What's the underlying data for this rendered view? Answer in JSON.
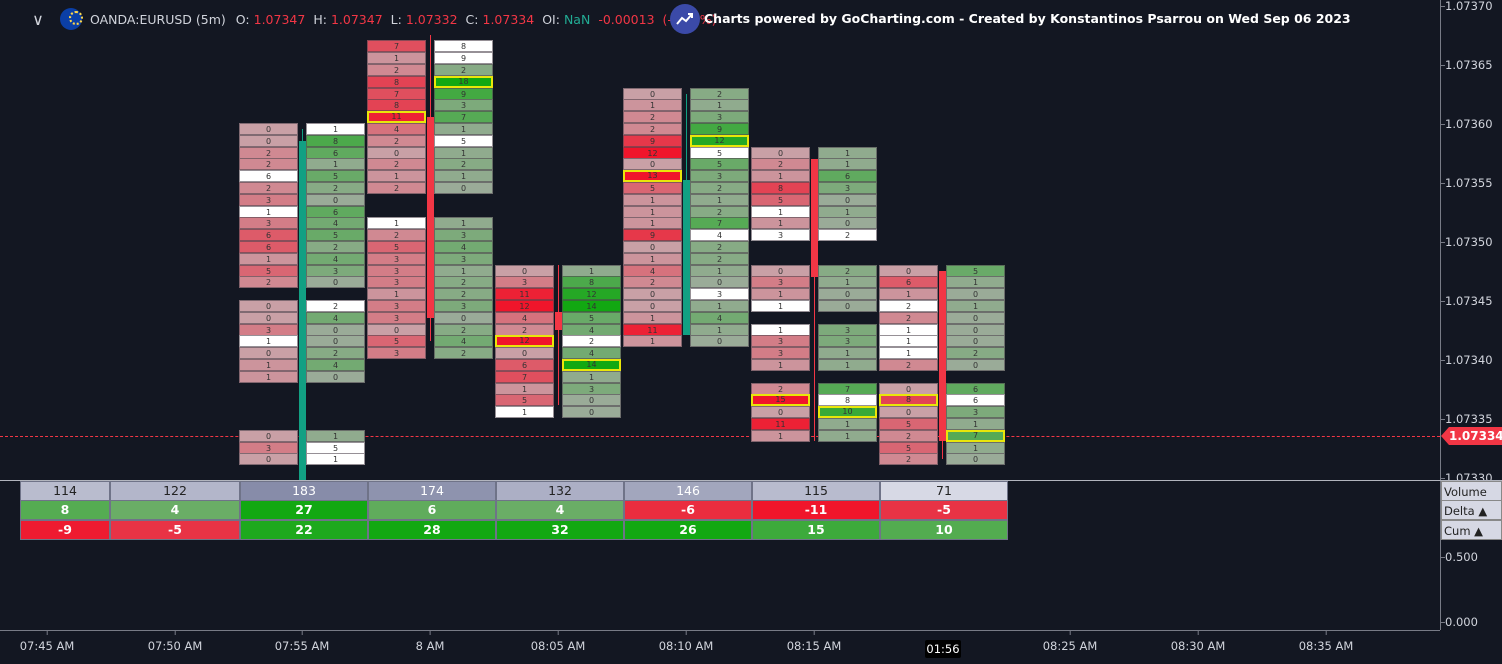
{
  "header": {
    "symbol": "OANDA:EURUSD (5m)",
    "o_label": "O:",
    "o": "1.07347",
    "h_label": "H:",
    "h": "1.07347",
    "l_label": "L:",
    "l": "1.07332",
    "c_label": "C:",
    "c": "1.07334",
    "oi_label": "OI:",
    "oi": "NaN",
    "change": "-0.00013",
    "change_pct": "(-0.01%)",
    "credit": "Charts powered by GoCharting.com - Created by Konstantinos Psarrou on Wed Sep 06 2023",
    "icons": [
      "chevron-down-icon",
      "eur-flag-icon",
      "gocharting-logo-icon"
    ]
  },
  "colors": {
    "bg": "#131722",
    "up": "#12a083",
    "down": "#f23645",
    "poc_border": "#e9e60a",
    "last_price": "#f23645"
  },
  "chart_data": {
    "type": "footprint",
    "price_step": 1e-05,
    "y_ticks": [
      "1.07370",
      "1.07365",
      "1.07360",
      "1.07355",
      "1.07350",
      "1.07345",
      "1.07340",
      "1.07335",
      "1.07330"
    ],
    "y_ticks_lower": [
      "0.500",
      "0.000"
    ],
    "x_ticks": [
      "07:45 AM",
      "07:50 AM",
      "07:55 AM",
      "8 AM",
      "08:05 AM",
      "08:10 AM",
      "08:15 AM",
      "08:25 AM",
      "08:30 AM",
      "08:35 AM"
    ],
    "last_price": "1.07334",
    "countdown": "01:56",
    "cell_legend": "w = white cell, h = point of control (highlighted)",
    "columns": [
      {
        "time": "07:55 AM",
        "candle": {
          "open": 1.0733,
          "high": 1.0736,
          "low": 1.07329,
          "close": 1.07359
        },
        "groups": [
          {
            "top": 1.0736,
            "bid": [
              "0",
              "0",
              "2",
              "2",
              "6w",
              "2",
              "3",
              "1w",
              "3",
              "6",
              "6",
              "1",
              "5",
              "2"
            ],
            "ask": [
              "1w",
              "8",
              "6",
              "1",
              "5",
              "2",
              "0",
              "6",
              "4",
              "5",
              "2",
              "4",
              "3",
              "0"
            ]
          },
          {
            "top": 1.07345,
            "bid": [
              "0",
              "0",
              "3",
              "1w",
              "0",
              "1",
              "1"
            ],
            "ask": [
              "2w",
              "4",
              "0",
              "0",
              "2",
              "4",
              "0"
            ]
          },
          {
            "top": 1.07334,
            "bid": [
              "0",
              "3",
              "0"
            ],
            "ask": [
              "1",
              "5w",
              "1w"
            ]
          }
        ]
      },
      {
        "time": "8 AM",
        "candle": {
          "open": 1.07361,
          "high": 1.07368,
          "low": 1.07342,
          "close": 1.07344
        },
        "groups": [
          {
            "top": 1.07367,
            "bid": [
              "7",
              "1",
              "2",
              "8",
              "7",
              "8",
              "11h",
              "4",
              "2",
              "0",
              "2",
              "1",
              "2"
            ],
            "ask": [
              "8w",
              "9w",
              "2",
              "18h",
              "9",
              "3",
              "7",
              "1",
              "5w",
              "1",
              "2",
              "1",
              "0"
            ]
          },
          {
            "top": 1.07352,
            "bid": [
              "1w",
              "2",
              "5",
              "3",
              "3",
              "3",
              "1",
              "3",
              "3",
              "0",
              "5",
              "3"
            ],
            "ask": [
              "1",
              "3",
              "4",
              "3",
              "1",
              "2",
              "2",
              "3",
              "0",
              "2",
              "4",
              "2"
            ]
          }
        ]
      },
      {
        "time": "08:05 AM",
        "candle": {
          "open": 1.073445,
          "high": 1.073485,
          "low": 1.073366,
          "close": 1.07343
        },
        "groups": [
          {
            "top": 1.07348,
            "bid": [
              "0",
              "3",
              "11",
              "12",
              "4",
              "2",
              "12h",
              "0",
              "6",
              "7",
              "1",
              "5",
              "1w"
            ],
            "ask": [
              "1",
              "8",
              "12",
              "14",
              "5",
              "4",
              "2w",
              "4",
              "14h",
              "1",
              "3",
              "0",
              "0"
            ]
          }
        ]
      },
      {
        "time": "08:10 AM",
        "candle": {
          "open": 1.073425,
          "high": 1.07363,
          "low": 1.073425,
          "close": 1.073557
        },
        "groups": [
          {
            "top": 1.07363,
            "bid": [
              "0",
              "1",
              "2",
              "2",
              "9",
              "12",
              "0",
              "13h",
              "5",
              "1",
              "1",
              "1",
              "9",
              "0",
              "1",
              "4",
              "2",
              "0",
              "0",
              "1",
              "11",
              "1"
            ],
            "ask": [
              "2",
              "1",
              "3",
              "9",
              "12h",
              "5w",
              "5",
              "3",
              "2",
              "1",
              "2",
              "7",
              "4w",
              "2",
              "2",
              "1",
              "0",
              "3w",
              "1",
              "4",
              "1",
              "0"
            ]
          }
        ]
      },
      {
        "time": "08:15 AM",
        "candle": {
          "open": 1.073575,
          "high": 1.073575,
          "low": 1.073336,
          "close": 1.073475
        },
        "groups": [
          {
            "top": 1.07358,
            "bid": [
              "0",
              "2",
              "1",
              "8",
              "5",
              "1w",
              "1",
              "3w"
            ],
            "ask": [
              "1",
              "1",
              "6",
              "3",
              "0",
              "1",
              "0",
              "2w"
            ]
          },
          {
            "top": 1.07348,
            "bid": [
              "0",
              "3",
              "1",
              "1w"
            ],
            "ask": [
              "2",
              "1",
              "0",
              "0"
            ]
          },
          {
            "top": 1.07343,
            "bid": [
              "1w",
              "3",
              "3",
              "1"
            ],
            "ask": [
              "3",
              "3",
              "1",
              "1"
            ]
          },
          {
            "top": 1.07338,
            "bid": [
              "2",
              "15h",
              "0",
              "11",
              "1"
            ],
            "ask": [
              "7",
              "8w",
              "10h",
              "1",
              "1"
            ]
          }
        ]
      },
      {
        "time": "08:20 AM",
        "candle": {
          "open": 1.07348,
          "high": 1.07348,
          "low": 1.07332,
          "close": 1.073336
        },
        "groups": [
          {
            "top": 1.07348,
            "bid": [
              "0",
              "6",
              "1",
              "2w",
              "2",
              "1w",
              "1w",
              "1w",
              "2"
            ],
            "ask": [
              "5",
              "1",
              "0",
              "1",
              "0",
              "0",
              "0",
              "2",
              "0"
            ]
          },
          {
            "top": 1.07338,
            "bid": [
              "0",
              "8h",
              "0",
              "5",
              "2",
              "5",
              "2"
            ],
            "ask": [
              "6",
              "6w",
              "3",
              "1",
              "7h",
              "1",
              "0"
            ]
          }
        ]
      }
    ],
    "summary": {
      "labels": [
        "Volume",
        "Delta ▲",
        "Cum ▲"
      ],
      "volume": [
        114,
        122,
        183,
        174,
        132,
        146,
        115,
        71
      ],
      "delta": [
        8,
        4,
        27,
        6,
        4,
        -6,
        -11,
        -5
      ],
      "cum": [
        -9,
        -5,
        22,
        28,
        32,
        26,
        15,
        10
      ]
    }
  }
}
